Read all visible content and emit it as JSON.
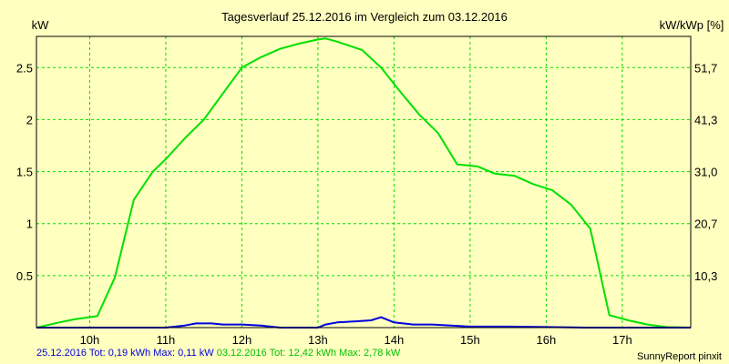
{
  "chart_data": {
    "type": "line",
    "title": "Tagesverlauf 25.12.2016 im Vergleich zum 03.12.2016",
    "ylabel_left": "kW",
    "ylabel_right": "kW/kWp [%]",
    "xlim": [
      9.3,
      17.9
    ],
    "ylim": [
      0,
      2.8
    ],
    "grid": true,
    "x_ticks": [
      10,
      11,
      12,
      13,
      14,
      15,
      16,
      17
    ],
    "x_tick_labels": [
      "10h",
      "11h",
      "12h",
      "13h",
      "14h",
      "15h",
      "16h",
      "17h"
    ],
    "y_ticks": [
      0.5,
      1,
      1.5,
      2,
      2.5
    ],
    "y_tick_labels": [
      "0.5",
      "1",
      "1.5",
      "2",
      "2.5"
    ],
    "y_right_ticks": [
      0.5,
      1,
      1.5,
      2,
      2.5
    ],
    "y_right_tick_labels": [
      "10,3",
      "20,7",
      "31,0",
      "41,3",
      "51,7"
    ],
    "series": [
      {
        "color": "#00e000",
        "x": [
          9.3,
          9.6,
          9.8,
          10.1,
          10.33,
          10.58,
          10.83,
          11.0,
          11.25,
          11.5,
          11.75,
          12.0,
          12.25,
          12.5,
          12.75,
          13.0,
          13.1,
          13.25,
          13.58,
          13.83,
          14.08,
          14.33,
          14.58,
          14.83,
          15.1,
          15.33,
          15.58,
          15.83,
          16.08,
          16.33,
          16.58,
          16.83,
          17.08,
          17.33,
          17.58,
          17.9
        ],
        "y": [
          0.0,
          0.05,
          0.08,
          0.11,
          0.48,
          1.23,
          1.5,
          1.62,
          1.82,
          2.0,
          2.25,
          2.5,
          2.6,
          2.68,
          2.73,
          2.77,
          2.78,
          2.75,
          2.67,
          2.5,
          2.27,
          2.05,
          1.87,
          1.57,
          1.55,
          1.48,
          1.46,
          1.38,
          1.32,
          1.18,
          0.95,
          0.12,
          0.07,
          0.03,
          0.005,
          0.0
        ]
      },
      {
        "color": "#0000e0",
        "x": [
          9.3,
          9.8,
          10.1,
          10.5,
          10.8,
          11.0,
          11.25,
          11.4,
          11.6,
          11.75,
          12.0,
          12.25,
          12.5,
          12.75,
          13.0,
          13.1,
          13.25,
          13.5,
          13.7,
          13.83,
          14.0,
          14.25,
          14.5,
          14.75,
          15.0,
          15.5,
          16.0,
          16.5,
          17.0,
          17.9
        ],
        "y": [
          0.0,
          0.0,
          0.0,
          0.0,
          0.0,
          0.0,
          0.02,
          0.04,
          0.04,
          0.03,
          0.03,
          0.02,
          0.0,
          0.0,
          0.0,
          0.03,
          0.05,
          0.06,
          0.07,
          0.1,
          0.05,
          0.03,
          0.03,
          0.02,
          0.01,
          0.01,
          0.005,
          0.0,
          0.0,
          0.0
        ]
      }
    ]
  },
  "footer": {
    "blue_stats": "25.12.2016 Tot: 0,19 kWh Max: 0,11 kW",
    "green_stats": "03.12.2016 Tot: 12,42 kWh Max: 2,78 kW",
    "credit": "SunnyReport pinxit"
  },
  "colors": {
    "background": "#ffffc0",
    "grid": "#00dd00",
    "blue": "#0000e0",
    "green": "#00e000"
  }
}
